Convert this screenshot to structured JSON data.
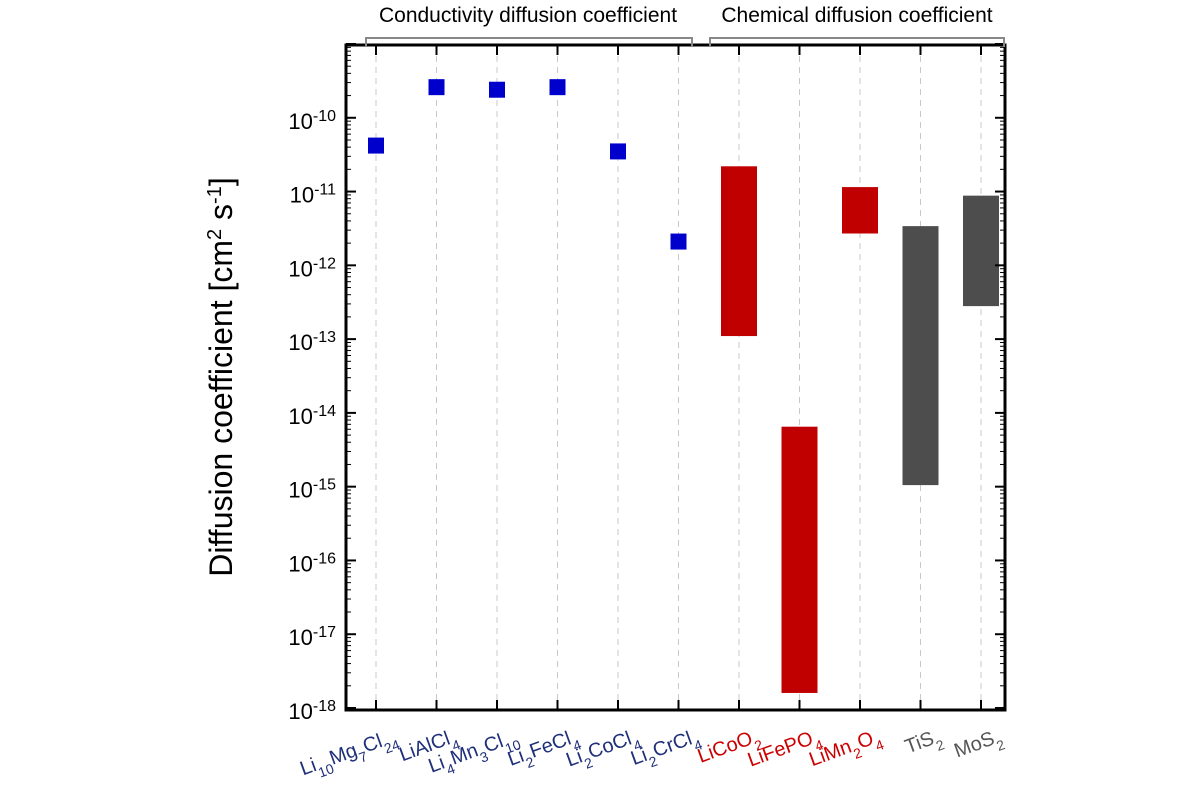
{
  "chart_data": {
    "type": "scatter",
    "ylabel": {
      "main": "Diffusion coefficient [cm",
      "sup1": "2",
      "mid": " s",
      "sup2": "-1",
      "end": "]"
    },
    "y_scale": "log",
    "ylim": [
      1e-18,
      1e-09
    ],
    "y_ticks": [
      -18,
      -17,
      -16,
      -15,
      -14,
      -13,
      -12,
      -11,
      -10
    ],
    "y_tick_base": "10",
    "grid": "vertical-dashed",
    "groups": [
      {
        "label": "Conductivity diffusion coefficient",
        "from": 0,
        "to": 5
      },
      {
        "label": "Chemical diffusion coefficient",
        "from": 6,
        "to": 10
      }
    ],
    "categories": [
      {
        "parts": [
          [
            "Li",
            ""
          ],
          [
            "10",
            "sub"
          ],
          [
            "Mg",
            ""
          ],
          [
            "7",
            "sub"
          ],
          [
            "Cl",
            ""
          ],
          [
            "24",
            "sub"
          ]
        ],
        "color": "#1f2f7a"
      },
      {
        "parts": [
          [
            "LiAlCl",
            ""
          ],
          [
            "4",
            "sub"
          ]
        ],
        "color": "#1f2f7a"
      },
      {
        "parts": [
          [
            "Li",
            ""
          ],
          [
            "4",
            "sub"
          ],
          [
            "Mn",
            ""
          ],
          [
            "3",
            "sub"
          ],
          [
            "Cl",
            ""
          ],
          [
            "10",
            "sub"
          ]
        ],
        "color": "#1f2f7a"
      },
      {
        "parts": [
          [
            "Li",
            ""
          ],
          [
            "2",
            "sub"
          ],
          [
            "FeCl",
            ""
          ],
          [
            "4",
            "sub"
          ]
        ],
        "color": "#1f2f7a"
      },
      {
        "parts": [
          [
            "Li",
            ""
          ],
          [
            "2",
            "sub"
          ],
          [
            "CoCl",
            ""
          ],
          [
            "4",
            "sub"
          ]
        ],
        "color": "#1f2f7a"
      },
      {
        "parts": [
          [
            "Li",
            ""
          ],
          [
            "2",
            "sub"
          ],
          [
            "CrCl",
            ""
          ],
          [
            "4",
            "sub"
          ]
        ],
        "color": "#1f2f7a"
      },
      {
        "parts": [
          [
            "LiCoO",
            ""
          ],
          [
            "2",
            "sub"
          ]
        ],
        "color": "#cc0000"
      },
      {
        "parts": [
          [
            "LiFePO",
            ""
          ],
          [
            "4",
            "sub"
          ]
        ],
        "color": "#cc0000"
      },
      {
        "parts": [
          [
            "LiMn",
            ""
          ],
          [
            "2",
            "sub"
          ],
          [
            "O",
            ""
          ],
          [
            "4",
            "sub"
          ]
        ],
        "color": "#cc0000"
      },
      {
        "parts": [
          [
            "TiS",
            ""
          ],
          [
            "2",
            "sub"
          ]
        ],
        "color": "#555555"
      },
      {
        "parts": [
          [
            "MoS",
            ""
          ],
          [
            "2",
            "sub"
          ]
        ],
        "color": "#555555"
      }
    ],
    "points": [
      {
        "category": 0,
        "value": 4.2e-11
      },
      {
        "category": 1,
        "value": 2.6e-10
      },
      {
        "category": 2,
        "value": 2.4e-10
      },
      {
        "category": 3,
        "value": 2.6e-10
      },
      {
        "category": 4,
        "value": 3.5e-11
      },
      {
        "category": 5,
        "value": 2.1e-12
      }
    ],
    "ranges": [
      {
        "category": 6,
        "low": 1.1e-13,
        "high": 2.2e-11
      },
      {
        "category": 7,
        "low": 1.6e-18,
        "high": 6.5e-15
      },
      {
        "category": 8,
        "low": 2.7e-12,
        "high": 1.15e-11
      },
      {
        "category": 9,
        "low": 1.05e-15,
        "high": 3.4e-12
      },
      {
        "category": 10,
        "low": 2.8e-13,
        "high": 8.8e-12
      }
    ],
    "colors": {
      "point": "#0000cc",
      "chemical": "#c00000",
      "layered": "#4d4d4d"
    }
  }
}
